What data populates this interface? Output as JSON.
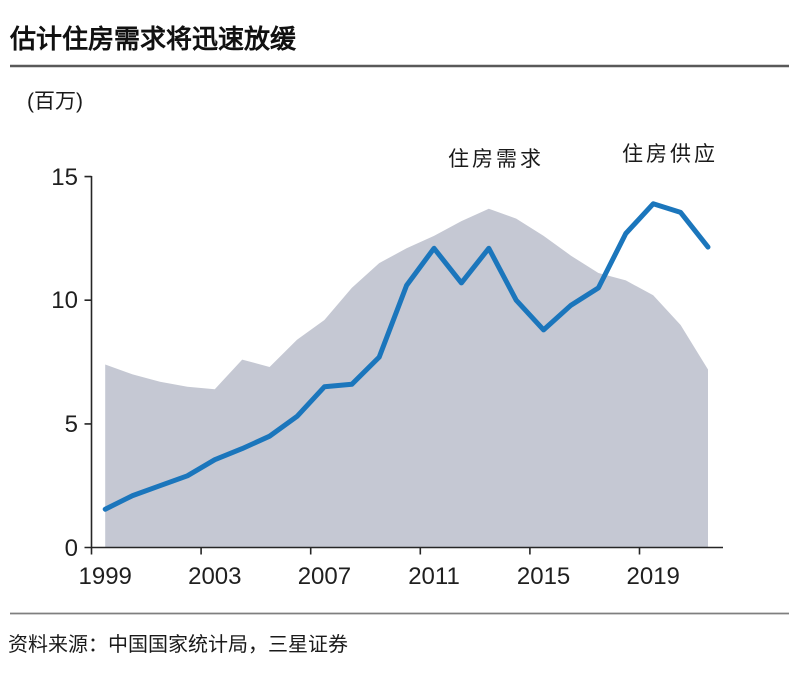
{
  "header": {
    "title": "估计住房需求将迅速放缓"
  },
  "chart": {
    "unit_label": "(百万)",
    "series_labels": {
      "demand": "住房需求",
      "supply": "住房供应"
    }
  },
  "footer": {
    "source": "资料来源：中国国家统计局，三星证券"
  },
  "chart_data": {
    "type": "area+line",
    "title": "估计住房需求将迅速放缓",
    "ylabel": "(百万)",
    "xlabel": "",
    "x_range": [
      1999,
      2021
    ],
    "ylim": [
      0,
      15
    ],
    "grid": false,
    "legend_position": "inline-annotations",
    "y_tick_labels": [
      "0",
      "5",
      "10",
      "15"
    ],
    "x_tick_labels": [
      "1999",
      "2003",
      "2007",
      "2011",
      "2015",
      "2019"
    ],
    "years": [
      1999,
      2000,
      2001,
      2002,
      2003,
      2004,
      2005,
      2006,
      2007,
      2008,
      2009,
      2010,
      2011,
      2012,
      2013,
      2014,
      2015,
      2016,
      2017,
      2018,
      2019,
      2020,
      2021
    ],
    "series": [
      {
        "name": "住房需求",
        "type": "area",
        "color": "#c5c8d3",
        "values": [
          7.4,
          7.0,
          6.7,
          6.5,
          6.4,
          7.6,
          7.3,
          8.4,
          9.2,
          10.5,
          11.5,
          12.1,
          12.6,
          13.2,
          13.7,
          13.3,
          12.6,
          11.8,
          11.1,
          10.8,
          10.2,
          9.0,
          7.2
        ]
      },
      {
        "name": "住房供应",
        "type": "line",
        "color": "#1b76bc",
        "values": [
          1.55,
          2.1,
          2.5,
          2.9,
          3.55,
          4.0,
          4.5,
          5.3,
          6.5,
          6.6,
          7.7,
          10.6,
          12.1,
          10.7,
          12.1,
          10.0,
          8.8,
          9.8,
          10.5,
          12.7,
          13.9,
          13.55,
          12.15
        ]
      }
    ]
  }
}
